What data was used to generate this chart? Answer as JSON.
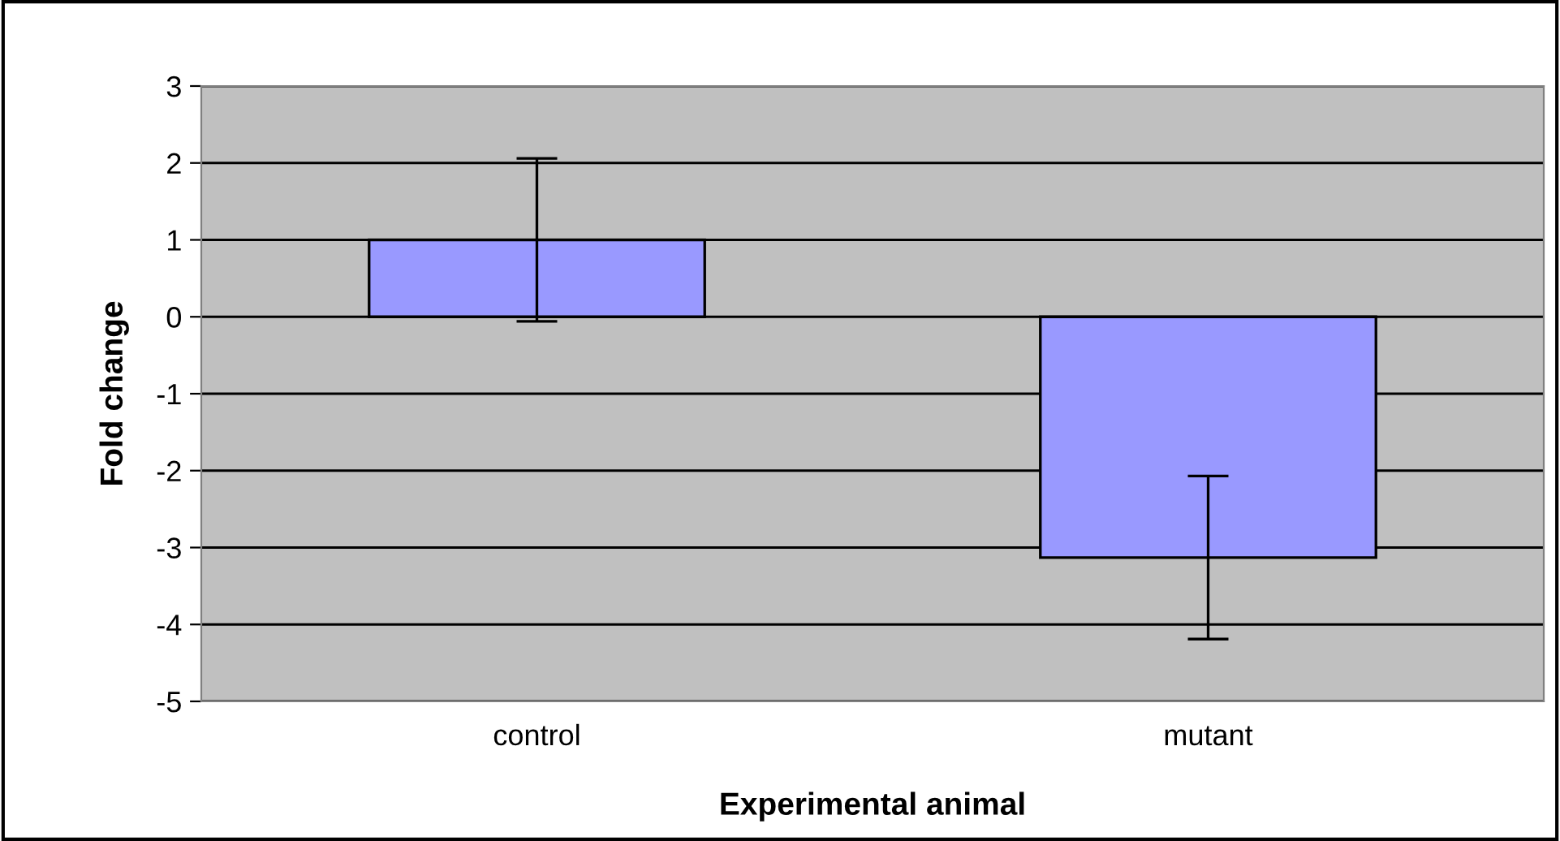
{
  "chart_data": {
    "type": "bar",
    "xlabel": "Experimental animal",
    "ylabel": "Fold change",
    "categories": [
      "control",
      "mutant"
    ],
    "values": [
      1,
      -3.13
    ],
    "errors": [
      1.06,
      1.06
    ],
    "color": "#9999ff",
    "ylim": [
      -5,
      3
    ],
    "yticks": [
      -5,
      -4,
      -3,
      -2,
      -1,
      0,
      1,
      2,
      3
    ],
    "grid": "y",
    "legend": false
  }
}
